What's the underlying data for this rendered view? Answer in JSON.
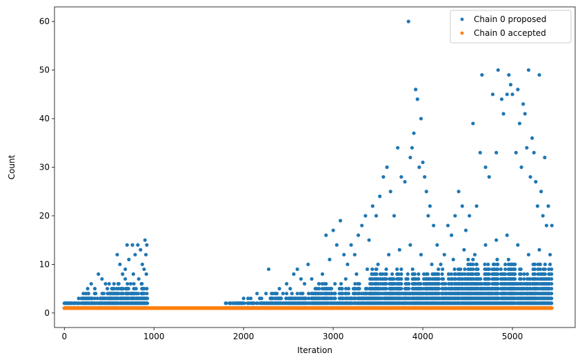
{
  "chart_data": {
    "type": "scatter",
    "title": "",
    "xlabel": "Iteration",
    "ylabel": "Count",
    "xlim": [
      -110,
      5700
    ],
    "ylim": [
      -3,
      63
    ],
    "x_ticks": [
      0,
      1000,
      2000,
      3000,
      4000,
      5000
    ],
    "y_ticks": [
      0,
      10,
      20,
      30,
      40,
      50,
      60
    ],
    "grid": false,
    "legend_placement": "top-right",
    "series": [
      {
        "name": "Chain 0 proposed",
        "color": "#1f77b4",
        "marker": "circle",
        "description": "Point cloud: roughly 1-2 for iterations 0-200, rising to a max of ~15 by iteration ~930; gap from ~930 to ~1800; then values rising from 2-5 near 1800-2500 up to peaks at 3840 (60), 4830 (50), 5200 (50), ending at ~5440.",
        "points": [
          [
            0,
            1
          ],
          [
            40,
            2
          ],
          [
            80,
            2
          ],
          [
            120,
            2
          ],
          [
            160,
            3
          ],
          [
            200,
            2
          ],
          [
            240,
            4
          ],
          [
            260,
            5
          ],
          [
            300,
            6
          ],
          [
            340,
            5
          ],
          [
            380,
            8
          ],
          [
            420,
            7
          ],
          [
            460,
            6
          ],
          [
            500,
            6
          ],
          [
            540,
            5
          ],
          [
            590,
            12
          ],
          [
            620,
            10
          ],
          [
            650,
            8
          ],
          [
            680,
            9
          ],
          [
            700,
            14
          ],
          [
            720,
            11
          ],
          [
            760,
            14
          ],
          [
            790,
            12
          ],
          [
            820,
            14
          ],
          [
            850,
            13
          ],
          [
            870,
            10
          ],
          [
            900,
            15
          ],
          [
            910,
            12
          ],
          [
            920,
            14
          ],
          [
            60,
            1
          ],
          [
            110,
            1
          ],
          [
            150,
            2
          ],
          [
            190,
            3
          ],
          [
            230,
            3
          ],
          [
            270,
            4
          ],
          [
            310,
            3
          ],
          [
            350,
            4
          ],
          [
            400,
            3
          ],
          [
            440,
            4
          ],
          [
            480,
            5
          ],
          [
            520,
            3
          ],
          [
            560,
            4
          ],
          [
            600,
            6
          ],
          [
            640,
            5
          ],
          [
            680,
            7
          ],
          [
            710,
            4
          ],
          [
            740,
            6
          ],
          [
            770,
            8
          ],
          [
            800,
            5
          ],
          [
            830,
            7
          ],
          [
            860,
            6
          ],
          [
            890,
            9
          ],
          [
            915,
            8
          ],
          [
            1800,
            2
          ],
          [
            1900,
            2
          ],
          [
            1950,
            2
          ],
          [
            2000,
            3
          ],
          [
            2050,
            3
          ],
          [
            2100,
            2
          ],
          [
            2150,
            4
          ],
          [
            2200,
            3
          ],
          [
            2250,
            4
          ],
          [
            2280,
            9
          ],
          [
            2320,
            3
          ],
          [
            2360,
            4
          ],
          [
            2400,
            5
          ],
          [
            2440,
            4
          ],
          [
            2480,
            6
          ],
          [
            2520,
            5
          ],
          [
            2560,
            8
          ],
          [
            2600,
            9
          ],
          [
            2640,
            7
          ],
          [
            2680,
            6
          ],
          [
            2720,
            10
          ],
          [
            2760,
            7
          ],
          [
            2800,
            5
          ],
          [
            2840,
            6
          ],
          [
            2880,
            8
          ],
          [
            2920,
            16
          ],
          [
            2960,
            11
          ],
          [
            3000,
            17
          ],
          [
            3040,
            14
          ],
          [
            3080,
            19
          ],
          [
            3120,
            12
          ],
          [
            3160,
            10
          ],
          [
            3200,
            14
          ],
          [
            3240,
            12
          ],
          [
            3280,
            16
          ],
          [
            3320,
            18
          ],
          [
            3360,
            20
          ],
          [
            3400,
            15
          ],
          [
            3440,
            22
          ],
          [
            3480,
            20
          ],
          [
            3520,
            24
          ],
          [
            3560,
            28
          ],
          [
            3600,
            30
          ],
          [
            3640,
            25
          ],
          [
            3680,
            20
          ],
          [
            3720,
            34
          ],
          [
            3760,
            28
          ],
          [
            3800,
            27
          ],
          [
            3840,
            60
          ],
          [
            3860,
            32
          ],
          [
            3880,
            34
          ],
          [
            3900,
            37
          ],
          [
            3920,
            46
          ],
          [
            3940,
            44
          ],
          [
            3960,
            30
          ],
          [
            3980,
            40
          ],
          [
            4000,
            31
          ],
          [
            4020,
            28
          ],
          [
            4040,
            25
          ],
          [
            4060,
            20
          ],
          [
            4080,
            22
          ],
          [
            4120,
            18
          ],
          [
            4160,
            14
          ],
          [
            4200,
            10
          ],
          [
            4240,
            12
          ],
          [
            4280,
            18
          ],
          [
            4320,
            16
          ],
          [
            4360,
            20
          ],
          [
            4400,
            25
          ],
          [
            4440,
            22
          ],
          [
            4480,
            17
          ],
          [
            4520,
            20
          ],
          [
            4560,
            39
          ],
          [
            4600,
            22
          ],
          [
            4640,
            33
          ],
          [
            4660,
            49
          ],
          [
            4700,
            30
          ],
          [
            4740,
            28
          ],
          [
            4780,
            45
          ],
          [
            4820,
            33
          ],
          [
            4840,
            50
          ],
          [
            4880,
            44
          ],
          [
            4900,
            41
          ],
          [
            4940,
            45
          ],
          [
            4960,
            49
          ],
          [
            4980,
            47
          ],
          [
            5000,
            45
          ],
          [
            5040,
            33
          ],
          [
            5060,
            46
          ],
          [
            5080,
            39
          ],
          [
            5100,
            30
          ],
          [
            5120,
            43
          ],
          [
            5140,
            41
          ],
          [
            5160,
            34
          ],
          [
            5180,
            50
          ],
          [
            5200,
            28
          ],
          [
            5220,
            36
          ],
          [
            5240,
            33
          ],
          [
            5260,
            27
          ],
          [
            5280,
            22
          ],
          [
            5300,
            49
          ],
          [
            5320,
            25
          ],
          [
            5340,
            20
          ],
          [
            5360,
            32
          ],
          [
            5380,
            18
          ],
          [
            5400,
            22
          ],
          [
            5420,
            12
          ],
          [
            5440,
            18
          ],
          [
            1850,
            2
          ],
          [
            1980,
            2
          ],
          [
            2080,
            3
          ],
          [
            2180,
            3
          ],
          [
            2300,
            3
          ],
          [
            2420,
            3
          ],
          [
            2540,
            4
          ],
          [
            2660,
            4
          ],
          [
            2780,
            4
          ],
          [
            2900,
            5
          ],
          [
            3020,
            6
          ],
          [
            3140,
            7
          ],
          [
            3260,
            8
          ],
          [
            3380,
            9
          ],
          [
            3500,
            10
          ],
          [
            3620,
            12
          ],
          [
            3740,
            13
          ],
          [
            3860,
            14
          ],
          [
            3980,
            12
          ],
          [
            4100,
            10
          ],
          [
            4220,
            9
          ],
          [
            4340,
            11
          ],
          [
            4460,
            13
          ],
          [
            4580,
            12
          ],
          [
            4700,
            14
          ],
          [
            4820,
            15
          ],
          [
            4940,
            16
          ],
          [
            5060,
            14
          ],
          [
            5180,
            12
          ],
          [
            5300,
            13
          ],
          [
            5420,
            10
          ]
        ],
        "band": [
          {
            "x0": 0,
            "x1": 200,
            "ymin": 1,
            "ymax": 2
          },
          {
            "x0": 200,
            "x1": 500,
            "ymin": 1,
            "ymax": 4
          },
          {
            "x0": 500,
            "x1": 930,
            "ymin": 1,
            "ymax": 6
          },
          {
            "x0": 1800,
            "x1": 2300,
            "ymin": 1,
            "ymax": 2
          },
          {
            "x0": 2300,
            "x1": 2800,
            "ymin": 1,
            "ymax": 4
          },
          {
            "x0": 2800,
            "x1": 3400,
            "ymin": 1,
            "ymax": 6
          },
          {
            "x0": 3400,
            "x1": 4500,
            "ymin": 1,
            "ymax": 9
          },
          {
            "x0": 4500,
            "x1": 5440,
            "ymin": 1,
            "ymax": 11
          }
        ]
      },
      {
        "name": "Chain 0 accepted",
        "color": "#ff7f0e",
        "marker": "circle",
        "description": "Constant value 1 at every iteration from 0 to ~5440.",
        "x_range": [
          0,
          5440
        ],
        "value": 1
      }
    ]
  }
}
